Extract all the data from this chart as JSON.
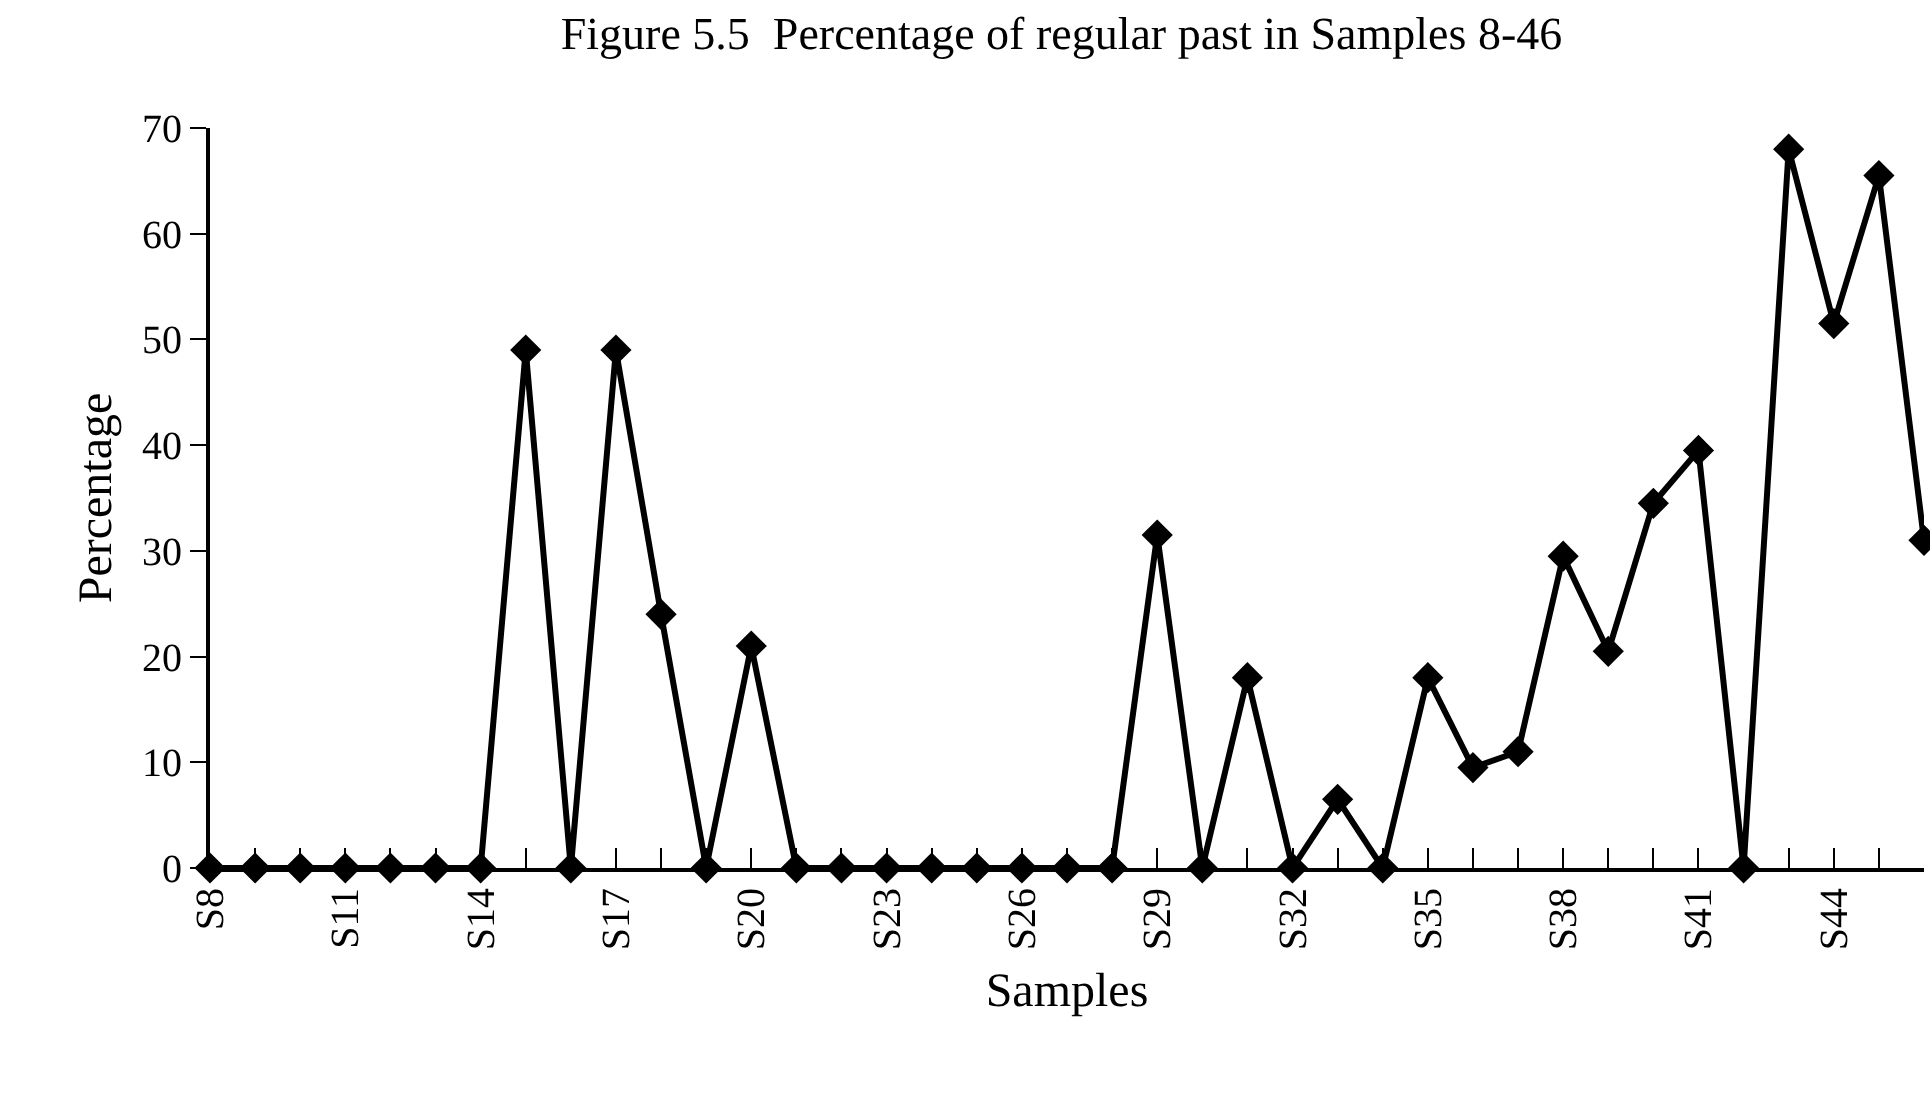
{
  "chart_data": {
    "type": "line",
    "title": "Figure 5.5  Percentage of regular past in Samples 8-46",
    "xlabel": "Samples",
    "ylabel": "Percentage",
    "categories": [
      "S8",
      null,
      null,
      "S11",
      null,
      null,
      "S14",
      null,
      null,
      "S17",
      null,
      null,
      "S20",
      null,
      null,
      "S23",
      null,
      null,
      "S26",
      null,
      null,
      "S29",
      null,
      null,
      "S32",
      null,
      null,
      "S35",
      null,
      null,
      "S38",
      null,
      null,
      "S41",
      null,
      null,
      "S44",
      null,
      null
    ],
    "series": [
      {
        "color": "#000000",
        "values": [
          0,
          0,
          0,
          0,
          0,
          0,
          0,
          49,
          0,
          49,
          24,
          0,
          21,
          0,
          0,
          0,
          0,
          0,
          0,
          0,
          0,
          31.5,
          0,
          18,
          0,
          6.5,
          0,
          18,
          9.5,
          11,
          29.5,
          20.5,
          34.5,
          39.5,
          0,
          68,
          51.5,
          65.5,
          31
        ]
      }
    ],
    "ylim": [
      0,
      70
    ],
    "yticks": [
      0,
      10,
      20,
      30,
      40,
      50,
      60,
      70
    ],
    "marker": "diamond",
    "line_style": "solid"
  }
}
